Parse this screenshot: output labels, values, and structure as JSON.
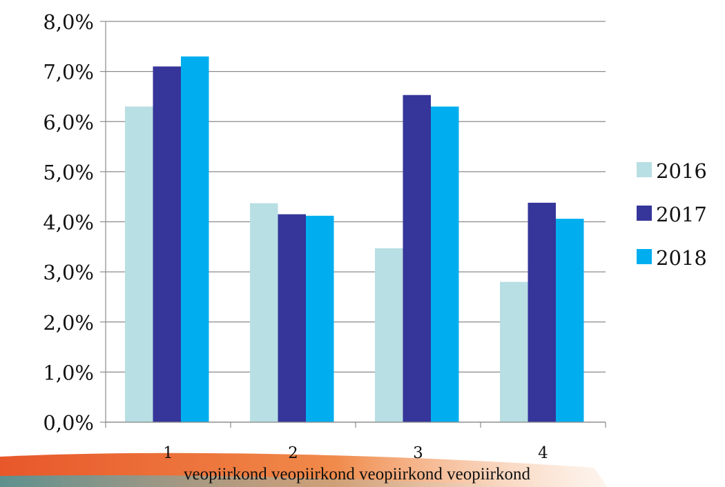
{
  "chart_data": {
    "type": "bar",
    "title": "",
    "xlabel": "",
    "ylabel": "",
    "categories": [
      {
        "number": "1",
        "word": "veopiirkond"
      },
      {
        "number": "2",
        "word": "veopiirkond"
      },
      {
        "number": "3",
        "word": "veopiirkond"
      },
      {
        "number": "4",
        "word": "veopiirkond"
      }
    ],
    "series": [
      {
        "name": "2016",
        "color": "#b8dfe3",
        "values": [
          6.3,
          4.37,
          3.47,
          2.8
        ]
      },
      {
        "name": "2017",
        "color": "#35359a",
        "values": [
          7.1,
          4.15,
          6.53,
          4.38
        ]
      },
      {
        "name": "2018",
        "color": "#00aeef",
        "values": [
          7.3,
          4.12,
          6.3,
          4.06
        ]
      }
    ],
    "ylim": [
      0,
      8
    ],
    "yticks": [
      0,
      1,
      2,
      3,
      4,
      5,
      6,
      7,
      8
    ],
    "ytick_labels": [
      "0,0%",
      "1,0%",
      "2,0%",
      "3,0%",
      "4,0%",
      "5,0%",
      "6,0%",
      "7,0%",
      "8,0%"
    ],
    "grid": true,
    "legend": "right"
  }
}
